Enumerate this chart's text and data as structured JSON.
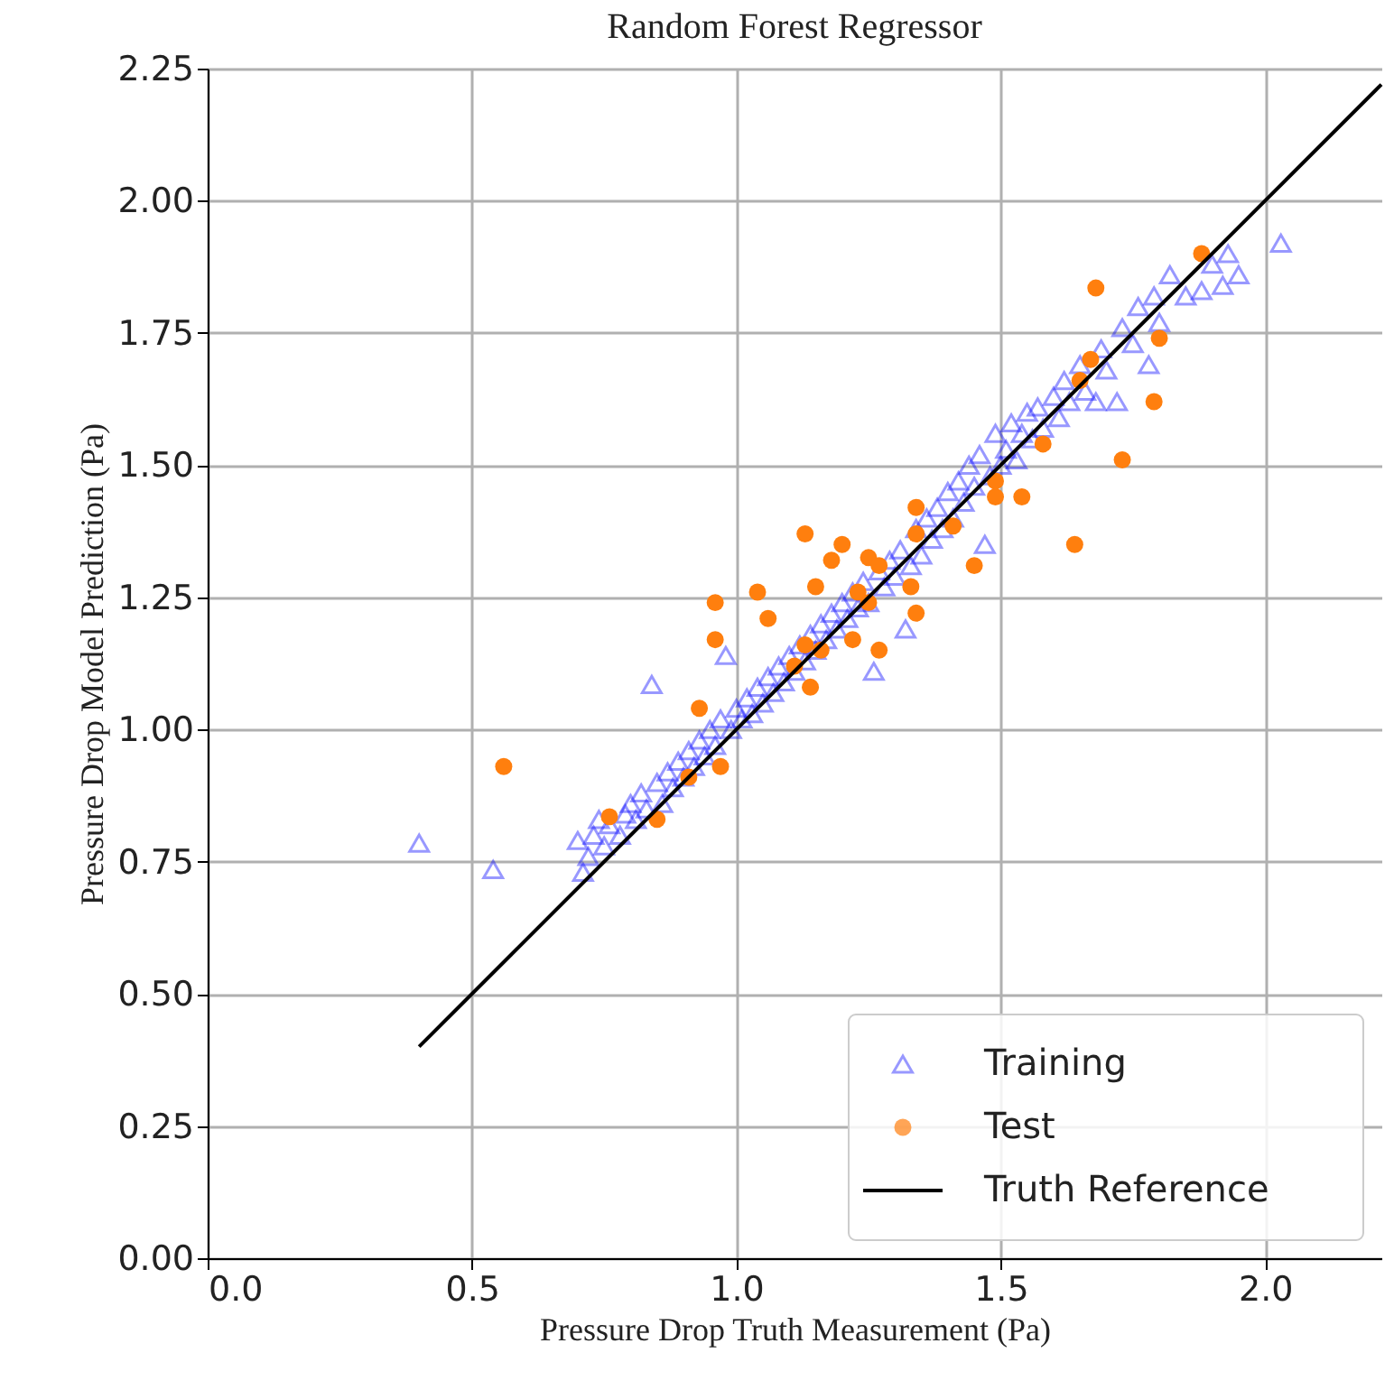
{
  "chart_data": {
    "type": "scatter",
    "title": "Random Forest Regressor",
    "xlabel": "Pressure Drop Truth Measurement (Pa)",
    "ylabel": "Pressure Drop Model Prediction (Pa)",
    "xlim": [
      0,
      2.22
    ],
    "ylim": [
      0,
      2.25
    ],
    "xticks": [
      {
        "value": 0,
        "label": "0.0"
      },
      {
        "value": 0.5,
        "label": "0.5"
      },
      {
        "value": 1,
        "label": "1.0"
      },
      {
        "value": 1.5,
        "label": "1.5"
      },
      {
        "value": 2,
        "label": "2.0"
      }
    ],
    "yticks": [
      {
        "value": 0,
        "label": "0.00"
      },
      {
        "value": 0.25,
        "label": "0.25"
      },
      {
        "value": 0.5,
        "label": "0.50"
      },
      {
        "value": 0.75,
        "label": "0.75"
      },
      {
        "value": 1,
        "label": "1.00"
      },
      {
        "value": 1.25,
        "label": "1.25"
      },
      {
        "value": 1.5,
        "label": "1.50"
      },
      {
        "value": 1.75,
        "label": "1.75"
      },
      {
        "value": 2,
        "label": "2.00"
      },
      {
        "value": 2.25,
        "label": "2.25"
      }
    ],
    "grid": true,
    "legend": "bottom right",
    "series": [
      {
        "name": "Training",
        "marker": "triangle",
        "color": "#0000ff",
        "x": [
          0.4,
          0.54,
          0.7,
          0.71,
          0.72,
          0.73,
          0.74,
          0.75,
          0.76,
          0.78,
          0.79,
          0.8,
          0.81,
          0.82,
          0.83,
          0.84,
          0.85,
          0.86,
          0.87,
          0.88,
          0.89,
          0.9,
          0.91,
          0.92,
          0.93,
          0.94,
          0.95,
          0.96,
          0.97,
          0.98,
          0.99,
          1.0,
          1.01,
          1.02,
          1.03,
          1.04,
          1.05,
          1.06,
          1.07,
          1.08,
          1.09,
          1.1,
          1.11,
          1.12,
          1.13,
          1.14,
          1.15,
          1.16,
          1.17,
          1.18,
          1.19,
          1.2,
          1.21,
          1.22,
          1.23,
          1.24,
          1.25,
          1.26,
          1.27,
          1.28,
          1.29,
          1.3,
          1.31,
          1.32,
          1.33,
          1.34,
          1.35,
          1.36,
          1.37,
          1.38,
          1.39,
          1.4,
          1.41,
          1.42,
          1.43,
          1.44,
          1.45,
          1.46,
          1.47,
          1.48,
          1.49,
          1.5,
          1.51,
          1.52,
          1.53,
          1.54,
          1.55,
          1.56,
          1.57,
          1.58,
          1.6,
          1.61,
          1.62,
          1.63,
          1.65,
          1.66,
          1.68,
          1.69,
          1.7,
          1.72,
          1.73,
          1.75,
          1.76,
          1.78,
          1.79,
          1.8,
          1.82,
          1.85,
          1.88,
          1.9,
          1.92,
          1.93,
          1.95,
          2.03
        ],
        "values": [
          0.785,
          0.735,
          0.79,
          0.73,
          0.76,
          0.8,
          0.83,
          0.78,
          0.82,
          0.8,
          0.84,
          0.86,
          0.83,
          0.88,
          0.85,
          1.085,
          0.9,
          0.86,
          0.92,
          0.89,
          0.94,
          0.91,
          0.96,
          0.93,
          0.98,
          0.95,
          1.0,
          0.97,
          1.02,
          1.14,
          1.0,
          1.04,
          1.02,
          1.06,
          1.03,
          1.08,
          1.05,
          1.1,
          1.07,
          1.12,
          1.09,
          1.14,
          1.11,
          1.16,
          1.13,
          1.18,
          1.15,
          1.2,
          1.17,
          1.22,
          1.19,
          1.24,
          1.21,
          1.26,
          1.23,
          1.28,
          1.24,
          1.11,
          1.3,
          1.27,
          1.32,
          1.29,
          1.34,
          1.19,
          1.31,
          1.38,
          1.33,
          1.4,
          1.36,
          1.42,
          1.38,
          1.45,
          1.4,
          1.47,
          1.43,
          1.5,
          1.46,
          1.52,
          1.35,
          1.48,
          1.56,
          1.5,
          1.53,
          1.58,
          1.51,
          1.56,
          1.6,
          1.55,
          1.61,
          1.57,
          1.63,
          1.59,
          1.66,
          1.62,
          1.69,
          1.64,
          1.62,
          1.72,
          1.68,
          1.62,
          1.76,
          1.73,
          1.8,
          1.69,
          1.82,
          1.77,
          1.86,
          1.82,
          1.83,
          1.88,
          1.84,
          1.9,
          1.86,
          1.92
        ]
      },
      {
        "name": "Test",
        "marker": "circle",
        "color": "#ff7f0e",
        "x": [
          0.56,
          0.76,
          0.85,
          0.91,
          0.97,
          0.93,
          0.96,
          0.96,
          1.06,
          1.04,
          1.14,
          1.11,
          1.13,
          1.16,
          1.22,
          1.27,
          1.8,
          1.79,
          1.73,
          1.64,
          1.67,
          1.65,
          1.58,
          1.49,
          1.49,
          1.54,
          1.41,
          1.45,
          1.34,
          1.34,
          1.33,
          1.13,
          1.2,
          1.18,
          1.25,
          1.27,
          1.15,
          1.23,
          1.25,
          1.34,
          1.88,
          1.68
        ],
        "values": [
          0.93,
          0.835,
          0.83,
          0.91,
          0.93,
          1.04,
          1.17,
          1.24,
          1.21,
          1.26,
          1.08,
          1.12,
          1.16,
          1.15,
          1.17,
          1.15,
          1.74,
          1.62,
          1.51,
          1.35,
          1.7,
          1.66,
          1.54,
          1.47,
          1.44,
          1.44,
          1.385,
          1.31,
          1.42,
          1.37,
          1.27,
          1.37,
          1.35,
          1.32,
          1.325,
          1.31,
          1.27,
          1.26,
          1.24,
          1.22,
          1.9,
          1.835
        ]
      },
      {
        "name": "Truth Reference",
        "type": "line",
        "line_style": "solid",
        "color": "#000000",
        "x": [
          0.4,
          2.22
        ],
        "values": [
          0.4,
          2.22
        ]
      }
    ]
  }
}
